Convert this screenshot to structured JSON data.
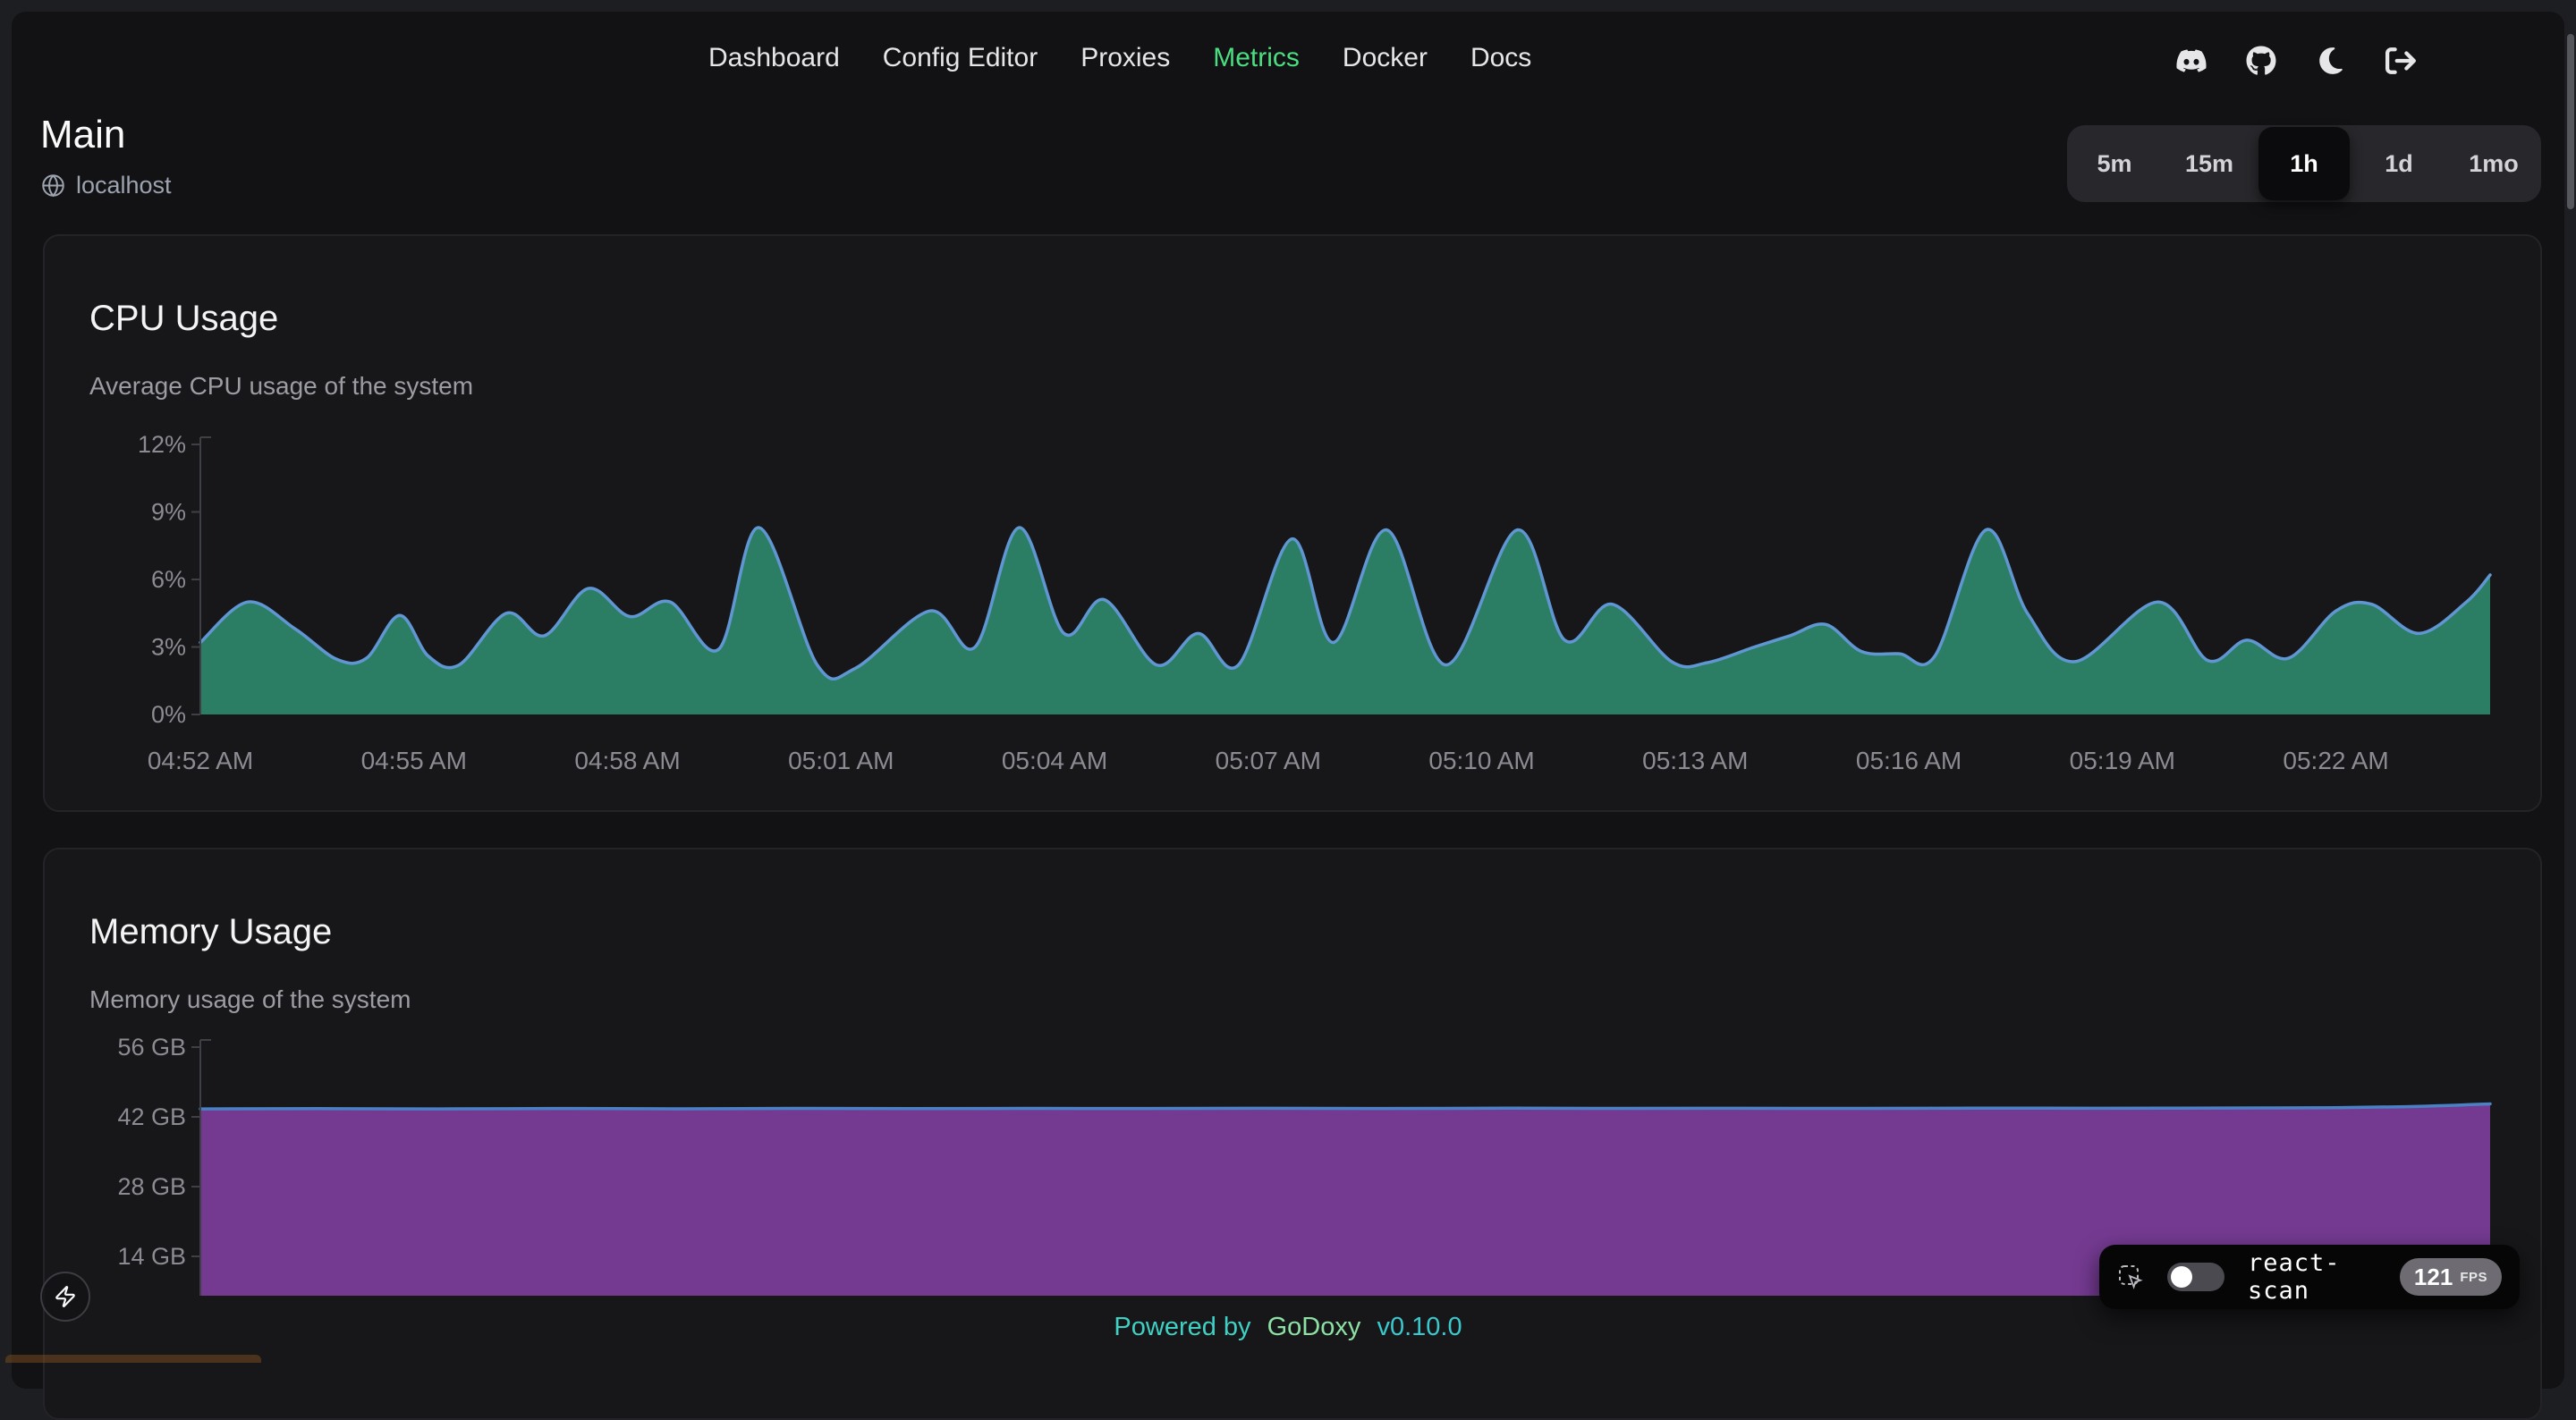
{
  "nav": {
    "items": [
      {
        "label": "Dashboard",
        "active": false
      },
      {
        "label": "Config Editor",
        "active": false
      },
      {
        "label": "Proxies",
        "active": false
      },
      {
        "label": "Metrics",
        "active": true
      },
      {
        "label": "Docker",
        "active": false
      },
      {
        "label": "Docs",
        "active": false
      }
    ]
  },
  "header": {
    "icons": [
      "discord-icon",
      "github-icon",
      "moon-icon",
      "logout-icon"
    ]
  },
  "page": {
    "title": "Main",
    "host": "localhost"
  },
  "time_range": {
    "options": [
      "5m",
      "15m",
      "1h",
      "1d",
      "1mo"
    ],
    "selected": "1h"
  },
  "chart_data": [
    {
      "id": "cpu",
      "type": "area",
      "title": "CPU Usage",
      "subtitle": "Average CPU usage of the system",
      "ylabel": "percent",
      "ylim": [
        0,
        12
      ],
      "yticks": [
        {
          "v": 0,
          "label": "0%"
        },
        {
          "v": 3,
          "label": "3%"
        },
        {
          "v": 6,
          "label": "6%"
        },
        {
          "v": 9,
          "label": "9%"
        },
        {
          "v": 12,
          "label": "12%"
        }
      ],
      "x_unit": "seconds after 04:52 AM",
      "xticks": [
        {
          "t": 0,
          "label": "04:52 AM"
        },
        {
          "t": 180,
          "label": "04:55 AM"
        },
        {
          "t": 360,
          "label": "04:58 AM"
        },
        {
          "t": 540,
          "label": "05:01 AM"
        },
        {
          "t": 720,
          "label": "05:04 AM"
        },
        {
          "t": 900,
          "label": "05:07 AM"
        },
        {
          "t": 1080,
          "label": "05:10 AM"
        },
        {
          "t": 1260,
          "label": "05:13 AM"
        },
        {
          "t": 1440,
          "label": "05:16 AM"
        },
        {
          "t": 1620,
          "label": "05:19 AM"
        },
        {
          "t": 1800,
          "label": "05:22 AM"
        }
      ],
      "points": [
        [
          0,
          3.2
        ],
        [
          40,
          5.0
        ],
        [
          80,
          3.8
        ],
        [
          115,
          2.45
        ],
        [
          140,
          2.5
        ],
        [
          168,
          4.4
        ],
        [
          192,
          2.6
        ],
        [
          218,
          2.2
        ],
        [
          258,
          4.5
        ],
        [
          290,
          3.5
        ],
        [
          327,
          5.6
        ],
        [
          362,
          4.35
        ],
        [
          396,
          5.0
        ],
        [
          437,
          2.9
        ],
        [
          471,
          8.3
        ],
        [
          520,
          2.2
        ],
        [
          552,
          2.05
        ],
        [
          615,
          4.6
        ],
        [
          653,
          3.0
        ],
        [
          690,
          8.3
        ],
        [
          728,
          3.6
        ],
        [
          762,
          5.1
        ],
        [
          806,
          2.2
        ],
        [
          841,
          3.6
        ],
        [
          875,
          2.2
        ],
        [
          920,
          7.8
        ],
        [
          955,
          3.2
        ],
        [
          1000,
          8.2
        ],
        [
          1050,
          2.2
        ],
        [
          1110,
          8.2
        ],
        [
          1150,
          3.3
        ],
        [
          1190,
          4.9
        ],
        [
          1240,
          2.35
        ],
        [
          1270,
          2.3
        ],
        [
          1310,
          3.0
        ],
        [
          1340,
          3.5
        ],
        [
          1370,
          4.0
        ],
        [
          1400,
          2.8
        ],
        [
          1432,
          2.7
        ],
        [
          1462,
          2.6
        ],
        [
          1505,
          8.2
        ],
        [
          1540,
          4.5
        ],
        [
          1580,
          2.35
        ],
        [
          1650,
          5.0
        ],
        [
          1692,
          2.4
        ],
        [
          1725,
          3.3
        ],
        [
          1760,
          2.5
        ],
        [
          1800,
          4.6
        ],
        [
          1830,
          4.9
        ],
        [
          1870,
          3.6
        ],
        [
          1910,
          5.0
        ],
        [
          1930,
          6.2
        ]
      ],
      "fill": "#2b7e63",
      "stroke": "#6096d2",
      "grid": false,
      "legend": "none"
    },
    {
      "id": "memory",
      "type": "area",
      "title": "Memory Usage",
      "subtitle": "Memory usage of the system",
      "ylabel": "GB",
      "ylim": [
        0,
        60
      ],
      "yticks": [
        {
          "v": 14,
          "label": "14 GB"
        },
        {
          "v": 28,
          "label": "28 GB"
        },
        {
          "v": 42,
          "label": "42 GB"
        },
        {
          "v": 56,
          "label": "56 GB"
        }
      ],
      "x_unit": "seconds after 04:52 AM",
      "xticks": [],
      "points": [
        [
          0,
          43.6
        ],
        [
          100,
          43.65
        ],
        [
          200,
          43.6
        ],
        [
          300,
          43.68
        ],
        [
          400,
          43.62
        ],
        [
          500,
          43.7
        ],
        [
          600,
          43.65
        ],
        [
          700,
          43.7
        ],
        [
          800,
          43.68
        ],
        [
          900,
          43.72
        ],
        [
          1000,
          43.68
        ],
        [
          1100,
          43.74
        ],
        [
          1200,
          43.7
        ],
        [
          1300,
          43.73
        ],
        [
          1400,
          43.7
        ],
        [
          1500,
          43.76
        ],
        [
          1600,
          43.72
        ],
        [
          1700,
          43.78
        ],
        [
          1800,
          43.85
        ],
        [
          1870,
          44.1
        ],
        [
          1930,
          44.6
        ]
      ],
      "fill": "#743a91",
      "stroke": "#4a80c4",
      "grid": false,
      "legend": "none"
    }
  ],
  "footer": {
    "powered_by": "Powered by",
    "brand": "GoDoxy",
    "version": "v0.10.0"
  },
  "react_scan": {
    "label": "react-scan",
    "fps": "121",
    "fps_unit": "FPS"
  },
  "colors": {
    "accent_green": "#4ade80",
    "cpu_fill": "#2b7e63",
    "cpu_stroke": "#6096d2",
    "mem_fill": "#743a91",
    "mem_stroke": "#4a80c4",
    "footer_teal": "#40d0c3",
    "footer_green": "#8ce0a4"
  }
}
